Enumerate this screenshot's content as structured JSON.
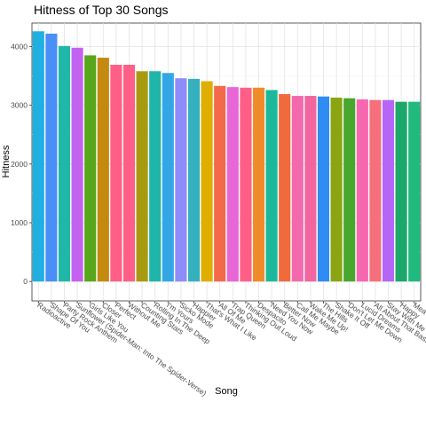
{
  "chart_data": {
    "type": "bar",
    "title": "Hitness of Top 30 Songs",
    "xlabel": "Song",
    "ylabel": "Hitness",
    "ylim": [
      0,
      4400
    ],
    "yticks": [
      0,
      1000,
      2000,
      3000,
      4000
    ],
    "grid": true,
    "legend": "none",
    "categories": [
      "Radioactive",
      "Shape Of You",
      "Party Rock Anthem",
      "Sunflower (Spider-Man: Into The Spider-Verse)",
      "Girls Like You",
      "Closer",
      "Perfect",
      "Without Me",
      "Counting Stars",
      "Rolling In The Deep",
      "I'm Yours",
      "Sicko Mode",
      "Happier",
      "That's What I Like",
      "All Of Me",
      "Trap Queen",
      "Thinking Out Loud",
      "Despacito",
      "Need You Now",
      "Better Now",
      "Call Me Maybe",
      "Wake Me Up!",
      "The Hills",
      "Shake It Off",
      "Don't Let Me Down",
      "Lucid Dreams",
      "All About That Bass",
      "Stay With Me",
      "Happy",
      "Mea"
    ],
    "values": [
      4260,
      4220,
      4010,
      3980,
      3850,
      3810,
      3690,
      3690,
      3580,
      3580,
      3550,
      3460,
      3450,
      3410,
      3330,
      3310,
      3300,
      3300,
      3260,
      3190,
      3160,
      3160,
      3150,
      3130,
      3120,
      3100,
      3090,
      3090,
      3060,
      3060
    ],
    "colors": [
      "#1FAFE0",
      "#4A8EF8",
      "#1FB8A8",
      "#C362F0",
      "#58A61A",
      "#C48A10",
      "#FF5F86",
      "#FF5F86",
      "#A89A10",
      "#1FB5A8",
      "#33A7E6",
      "#8D8CF9",
      "#34B0BE",
      "#E0AE00",
      "#F26A4A",
      "#E966D6",
      "#FF5F86",
      "#F08B29",
      "#1CB89B",
      "#F06A3C",
      "#F26AAD",
      "#F2659E",
      "#2F8CF3",
      "#8BA512",
      "#48A72D",
      "#F667AF",
      "#F66F7C",
      "#B566F7",
      "#1CA86A",
      "#21BA7E"
    ]
  }
}
